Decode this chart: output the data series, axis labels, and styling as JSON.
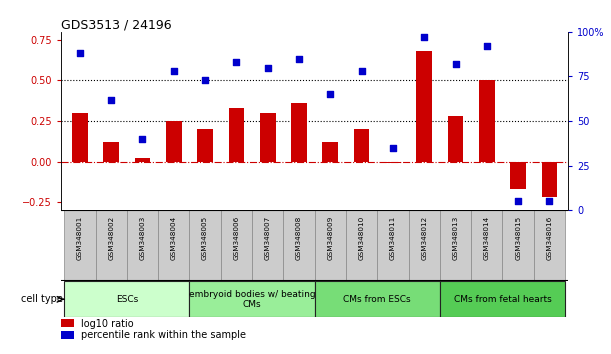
{
  "title": "GDS3513 / 24196",
  "samples": [
    "GSM348001",
    "GSM348002",
    "GSM348003",
    "GSM348004",
    "GSM348005",
    "GSM348006",
    "GSM348007",
    "GSM348008",
    "GSM348009",
    "GSM348010",
    "GSM348011",
    "GSM348012",
    "GSM348013",
    "GSM348014",
    "GSM348015",
    "GSM348016"
  ],
  "log10_ratio": [
    0.3,
    0.12,
    0.02,
    0.25,
    0.2,
    0.33,
    0.3,
    0.36,
    0.12,
    0.2,
    -0.01,
    0.68,
    0.28,
    0.5,
    -0.17,
    -0.22
  ],
  "percentile_rank": [
    88,
    62,
    40,
    78,
    73,
    83,
    80,
    85,
    65,
    78,
    35,
    97,
    82,
    92,
    5,
    5
  ],
  "ylim_left": [
    -0.3,
    0.8
  ],
  "ylim_right": [
    0,
    100
  ],
  "yticks_left": [
    -0.25,
    0.0,
    0.25,
    0.5,
    0.75
  ],
  "yticks_right": [
    0,
    25,
    50,
    75,
    100
  ],
  "ytick_right_labels": [
    "0",
    "25",
    "50",
    "75",
    "100%"
  ],
  "hlines": [
    0.25,
    0.5
  ],
  "bar_color": "#cc0000",
  "dot_color": "#0000cc",
  "zero_line_color": "#cc0000",
  "cell_type_groups": [
    {
      "label": "ESCs",
      "start": 0,
      "end": 3,
      "color": "#ccffcc"
    },
    {
      "label": "embryoid bodies w/ beating\nCMs",
      "start": 4,
      "end": 7,
      "color": "#99ee99"
    },
    {
      "label": "CMs from ESCs",
      "start": 8,
      "end": 11,
      "color": "#77dd77"
    },
    {
      "label": "CMs from fetal hearts",
      "start": 12,
      "end": 15,
      "color": "#55cc55"
    }
  ],
  "cell_type_label": "cell type",
  "legend_bar_label": "log10 ratio",
  "legend_dot_label": "percentile rank within the sample",
  "bar_width": 0.5,
  "sample_box_color": "#cccccc",
  "sample_box_edge": "#888888",
  "group_edge_color": "#222222",
  "bg_color": "#ffffff"
}
